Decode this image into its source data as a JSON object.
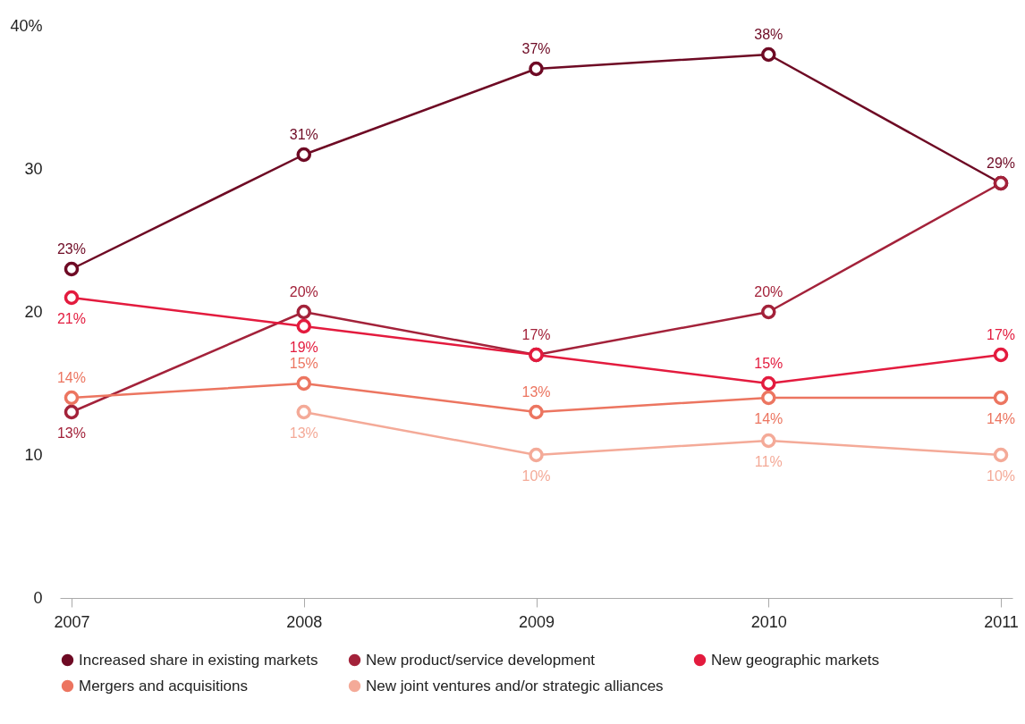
{
  "chart_data": {
    "type": "line",
    "categories": [
      "2007",
      "2008",
      "2009",
      "2010",
      "2011"
    ],
    "ylim": [
      0,
      40
    ],
    "yticks": [
      0,
      10,
      20,
      30,
      {
        "value": 40,
        "label": "40%"
      }
    ],
    "grid": false,
    "legend": "bottom",
    "marker": "circle",
    "line_style": "solid",
    "series": [
      {
        "name": "Increased share in existing markets",
        "color": "#6e0a24",
        "values": [
          23,
          31,
          37,
          38,
          29
        ],
        "value_labels": [
          "23%",
          "31%",
          "37%",
          "38%",
          "29%"
        ]
      },
      {
        "name": "New product/service development",
        "color": "#a3223a",
        "values": [
          13,
          20,
          17,
          20,
          29
        ],
        "value_labels": [
          "13%",
          "20%",
          "17%",
          "20%",
          null
        ]
      },
      {
        "name": "New geographic markets",
        "color": "#e31b3e",
        "values": [
          21,
          19,
          17,
          15,
          17
        ],
        "value_labels": [
          "21%",
          "19%",
          null,
          "15%",
          "17%"
        ]
      },
      {
        "name": "Mergers and acquisitions",
        "color": "#ec7560",
        "values": [
          14,
          15,
          13,
          14,
          14
        ],
        "value_labels": [
          "14%",
          "15%",
          "13%",
          "14%",
          "14%"
        ]
      },
      {
        "name": "New joint ventures and/or strategic alliances",
        "color": "#f4aa98",
        "values": [
          null,
          13,
          10,
          11,
          10
        ],
        "value_labels": [
          null,
          "13%",
          "10%",
          "11%",
          "10%"
        ]
      }
    ]
  }
}
